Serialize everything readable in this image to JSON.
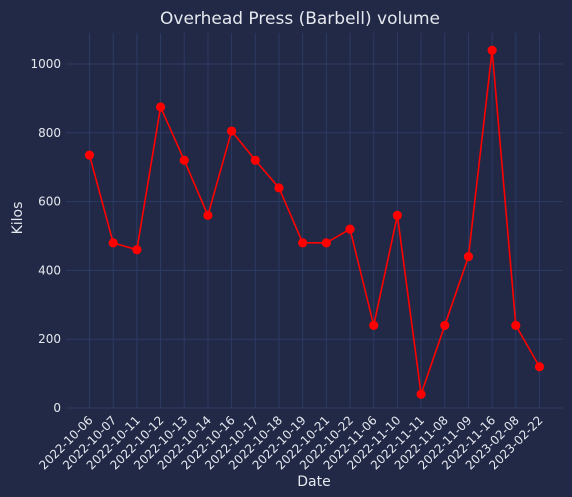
{
  "chart_data": {
    "type": "line",
    "title": "Overhead Press (Barbell) volume",
    "xlabel": "Date",
    "ylabel": "Kilos",
    "categories": [
      "2022-10-06",
      "2022-10-07",
      "2022-10-11",
      "2022-10-12",
      "2022-10-13",
      "2022-10-14",
      "2022-10-16",
      "2022-10-17",
      "2022-10-18",
      "2022-10-19",
      "2022-10-21",
      "2022-10-22",
      "2022-11-06",
      "2022-11-10",
      "2022-11-11",
      "2022-11-08",
      "2022-11-09",
      "2022-11-16",
      "2023-02-08",
      "2023-02-22"
    ],
    "series": [
      {
        "name": "Overhead Press (Barbell)",
        "values": [
          735,
          480,
          460,
          875,
          720,
          560,
          805,
          720,
          640,
          480,
          480,
          520,
          240,
          560,
          40,
          240,
          440,
          1040,
          240,
          120
        ]
      }
    ],
    "ylim": [
      0,
      1090
    ],
    "yticks": [
      0,
      200,
      400,
      600,
      800,
      1000
    ],
    "grid": true,
    "colors": {
      "background": "#212946",
      "line": "#ff0000",
      "marker": "#ff0000",
      "grid": "#2d3a63",
      "text": "#e6e8ef"
    }
  }
}
